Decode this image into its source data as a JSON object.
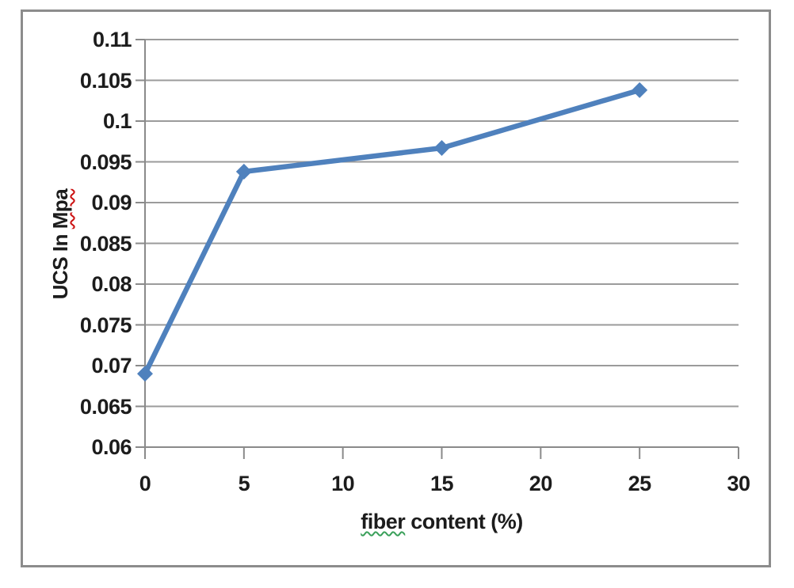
{
  "chart_data": {
    "type": "line",
    "title": "",
    "xlabel": "fiber content (%)",
    "ylabel": "UCS In Mpa",
    "xlabel_parts": [
      {
        "text": "fiber",
        "wavy": "green"
      },
      {
        "text": " content (%)",
        "wavy": null
      }
    ],
    "ylabel_parts": [
      {
        "text": "UCS In ",
        "wavy": null
      },
      {
        "text": "Mpa",
        "wavy": "red"
      }
    ],
    "series": [
      {
        "x": [
          0,
          5,
          15,
          25
        ],
        "values": [
          0.069,
          0.0938,
          0.0967,
          0.1038
        ]
      }
    ],
    "x_ticks": [
      0,
      5,
      10,
      15,
      20,
      25,
      30
    ],
    "x_tick_labels": [
      "0",
      "5",
      "10",
      "15",
      "20",
      "25",
      "30"
    ],
    "y_ticks": [
      0.06,
      0.065,
      0.07,
      0.075,
      0.08,
      0.085,
      0.09,
      0.095,
      0.1,
      0.105,
      0.11
    ],
    "y_tick_labels": [
      "0.06",
      "0.065",
      "0.07",
      "0.075",
      "0.08",
      "0.085",
      "0.09",
      "0.095",
      "0.1",
      "0.105",
      "0.11"
    ],
    "xlim": [
      0,
      30
    ],
    "ylim": [
      0.06,
      0.11
    ],
    "grid": "horizontal-major",
    "legend": "none",
    "marker": "diamond",
    "line_color": "#4f81bd",
    "gridline_color": "#9b9b9b",
    "axis_color": "#8a8a8a",
    "text_color": "#1c1c1c",
    "frame_border_color": "#8c8c8c",
    "background_color": "#ffffff"
  }
}
